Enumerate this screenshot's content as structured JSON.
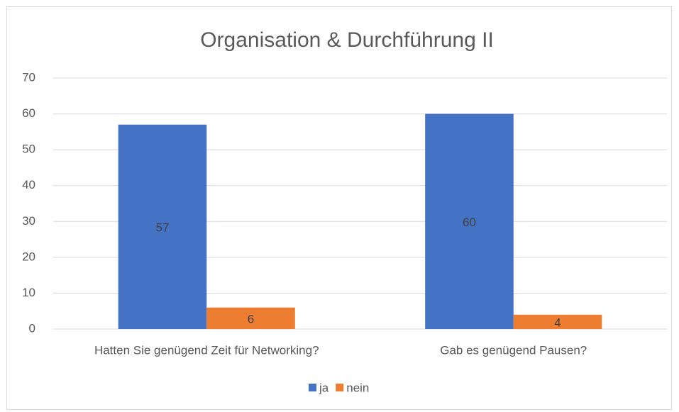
{
  "chart_data": {
    "type": "bar",
    "title": "Organisation & Durchführung II",
    "categories": [
      "Hatten Sie genügend Zeit für Networking?",
      "Gab es genügend Pausen?"
    ],
    "series": [
      {
        "name": "ja",
        "color": "#4472c4",
        "values": [
          57,
          60
        ]
      },
      {
        "name": "nein",
        "color": "#ed7d31",
        "values": [
          6,
          4
        ]
      }
    ],
    "ylim": [
      0,
      70
    ],
    "yticks": [
      0,
      10,
      20,
      30,
      40,
      50,
      60,
      70
    ],
    "grid": true,
    "legend": "bottom"
  }
}
